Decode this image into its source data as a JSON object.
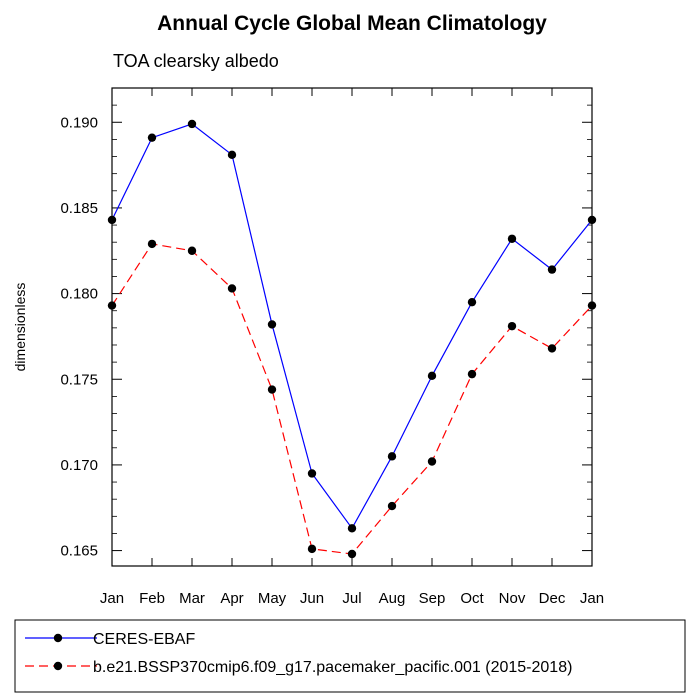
{
  "chart_data": {
    "type": "line",
    "title": "Annual Cycle Global Mean Climatology",
    "subtitle": "TOA clearsky albedo",
    "xlabel": "",
    "ylabel": "dimensionless",
    "categories": [
      "Jan",
      "Feb",
      "Mar",
      "Apr",
      "May",
      "Jun",
      "Jul",
      "Aug",
      "Sep",
      "Oct",
      "Nov",
      "Dec",
      "Jan"
    ],
    "ylim": [
      0.1641,
      0.192
    ],
    "yticks": [
      "0.165",
      "0.170",
      "0.175",
      "0.180",
      "0.185",
      "0.190"
    ],
    "grid": false,
    "legend_placement": "bottom",
    "series": [
      {
        "name": "CERES-EBAF",
        "color": "#0000ff",
        "dash": "solid",
        "marker": "circle",
        "values": [
          0.1843,
          0.1891,
          0.1899,
          0.1881,
          0.1782,
          0.1695,
          0.1663,
          0.1705,
          0.1752,
          0.1795,
          0.1832,
          0.1814,
          0.1843
        ]
      },
      {
        "name": "b.e21.BSSP370cmip6.f09_g17.pacemaker_pacific.001 (2015-2018)",
        "color": "#ff0000",
        "dash": "dashed",
        "marker": "circle",
        "values": [
          0.1793,
          0.1829,
          0.1825,
          0.1803,
          0.1744,
          0.1651,
          0.1648,
          0.1676,
          0.1702,
          0.1753,
          0.1781,
          0.1768,
          0.1793
        ]
      }
    ]
  }
}
